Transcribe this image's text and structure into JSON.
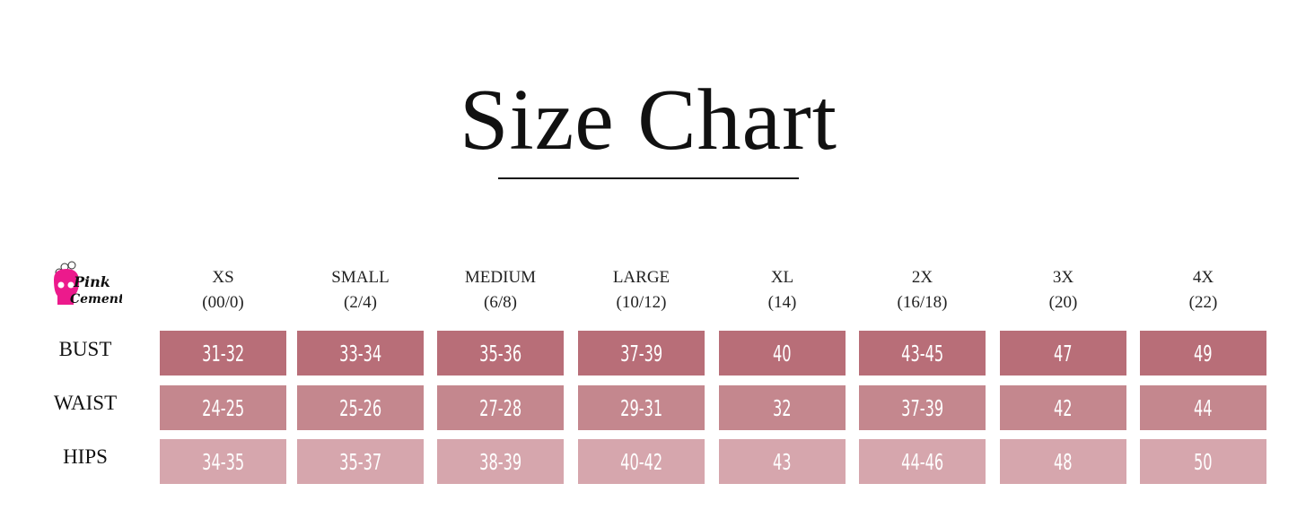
{
  "title": "Size Chart",
  "logo_text": "Pink Cement",
  "colors": {
    "bust": "#b86e78",
    "waist": "#c4878e",
    "hips": "#d6a6ad",
    "logo": "#ec1a8c"
  },
  "sizes": [
    {
      "name": "XS",
      "num": "(00/0)"
    },
    {
      "name": "SMALL",
      "num": "(2/4)"
    },
    {
      "name": "MEDIUM",
      "num": "(6/8)"
    },
    {
      "name": "LARGE",
      "num": "(10/12)"
    },
    {
      "name": "XL",
      "num": "(14)"
    },
    {
      "name": "2X",
      "num": "(16/18)"
    },
    {
      "name": "3X",
      "num": "(20)"
    },
    {
      "name": "4X",
      "num": "(22)"
    }
  ],
  "rows": [
    {
      "label": "BUST",
      "values": [
        "31-32",
        "33-34",
        "35-36",
        "37-39",
        "40",
        "43-45",
        "47",
        "49"
      ]
    },
    {
      "label": "WAIST",
      "values": [
        "24-25",
        "25-26",
        "27-28",
        "29-31",
        "32",
        "37-39",
        "42",
        "44"
      ]
    },
    {
      "label": "HIPS",
      "values": [
        "34-35",
        "35-37",
        "38-39",
        "40-42",
        "43",
        "44-46",
        "48",
        "50"
      ]
    }
  ]
}
